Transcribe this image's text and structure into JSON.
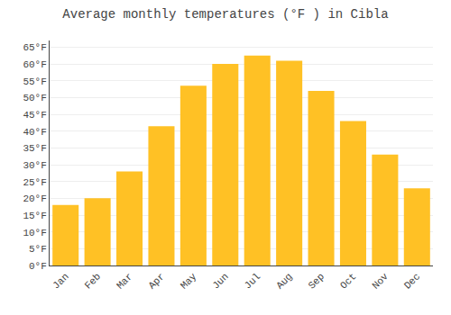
{
  "chart_data": {
    "type": "bar",
    "title": "Average monthly temperatures (°F ) in Cibla",
    "categories": [
      "Jan",
      "Feb",
      "Mar",
      "Apr",
      "May",
      "Jun",
      "Jul",
      "Aug",
      "Sep",
      "Oct",
      "Nov",
      "Dec"
    ],
    "values": [
      18,
      20,
      28,
      41.5,
      53.5,
      60,
      62.5,
      61,
      52,
      43,
      33,
      23
    ],
    "color": "#FFC125",
    "ylim": [
      0,
      67
    ],
    "yticks": [
      {
        "value": 0,
        "label": "0°F"
      },
      {
        "value": 5,
        "label": "5°F"
      },
      {
        "value": 10,
        "label": "10°F"
      },
      {
        "value": 15,
        "label": "15°F"
      },
      {
        "value": 20,
        "label": "20°F"
      },
      {
        "value": 25,
        "label": "25°F"
      },
      {
        "value": 30,
        "label": "30°F"
      },
      {
        "value": 35,
        "label": "35°F"
      },
      {
        "value": 40,
        "label": "40°F"
      },
      {
        "value": 45,
        "label": "45°F"
      },
      {
        "value": 50,
        "label": "50°F"
      },
      {
        "value": 55,
        "label": "55°F"
      },
      {
        "value": 60,
        "label": "60°F"
      },
      {
        "value": 65,
        "label": "65°F"
      }
    ],
    "grid": true
  }
}
